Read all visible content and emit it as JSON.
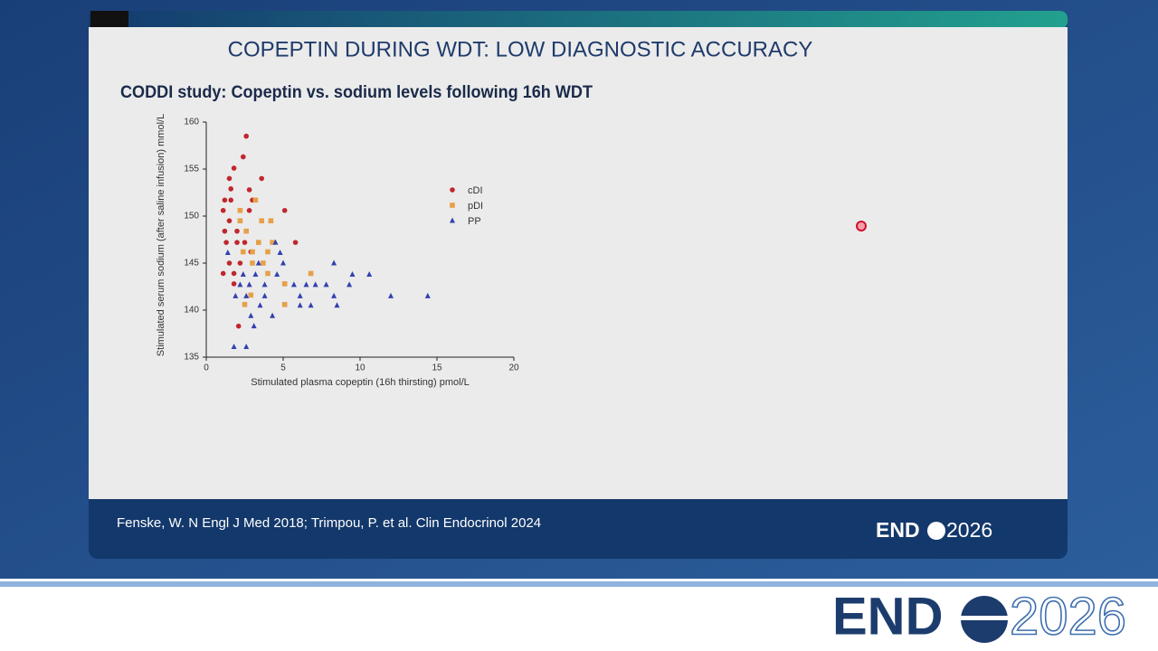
{
  "slide": {
    "title": "COPEPTIN DURING WDT: LOW DIAGNOSTIC ACCURACY",
    "citation": "Fenske, W. N Engl J Med 2018; Trimpou, P. et al. Clin Endocrinol 2024",
    "logo": {
      "left": "END",
      "right": "2026"
    }
  },
  "chart_data": {
    "type": "scatter",
    "title": "CODDI study: Copeptin vs. sodium levels following 16h WDT",
    "x_label": "Stimulated plasma copeptin (16h thirsting) pmol/L",
    "y_label": "Stimulated serum sodium (after saline infusion) mmol/L",
    "xlim": [
      0,
      20
    ],
    "ylim": [
      135,
      160
    ],
    "xticks": [
      0,
      5,
      10,
      15,
      20
    ],
    "yticks": [
      135,
      140,
      145,
      150,
      155,
      160
    ],
    "series": [
      {
        "name": "cDI",
        "color": "#c0272d",
        "marker": "circle",
        "x": [
          2.6,
          2.4,
          1.8,
          3.6,
          1.5,
          1.6,
          2.8,
          1.2,
          1.6,
          3.0,
          1.1,
          2.8,
          5.1,
          1.5,
          2.0,
          1.2,
          1.3,
          2.0,
          2.5,
          5.8,
          2.9,
          1.5,
          2.2,
          1.1,
          1.8,
          1.8,
          2.1
        ],
        "values": [
          158.5,
          156.3,
          155.1,
          154.0,
          154.0,
          152.9,
          152.8,
          151.7,
          151.7,
          151.7,
          150.6,
          150.6,
          150.6,
          149.5,
          148.4,
          148.4,
          147.2,
          147.2,
          147.2,
          147.2,
          146.2,
          145.0,
          145.0,
          143.9,
          143.9,
          142.8,
          138.3
        ]
      },
      {
        "name": "pDI",
        "color": "#e6a04a",
        "marker": "square",
        "x": [
          3.2,
          2.2,
          3.6,
          4.2,
          2.2,
          2.6,
          4.3,
          3.4,
          2.4,
          3.0,
          4.0,
          3.0,
          3.7,
          4.0,
          6.8,
          5.1,
          2.9,
          2.5,
          5.1
        ],
        "values": [
          151.7,
          150.6,
          149.5,
          149.5,
          149.5,
          148.4,
          147.2,
          147.2,
          146.2,
          146.2,
          146.2,
          145.0,
          145.0,
          143.9,
          143.9,
          142.8,
          141.6,
          140.6,
          140.6
        ]
      },
      {
        "name": "PP",
        "color": "#3340b0",
        "marker": "triangle",
        "x": [
          4.5,
          1.4,
          4.8,
          3.4,
          5.0,
          8.3,
          2.4,
          3.2,
          4.6,
          9.5,
          10.6,
          2.2,
          2.8,
          3.8,
          5.7,
          6.5,
          7.1,
          7.8,
          9.3,
          1.9,
          2.6,
          3.8,
          6.1,
          8.3,
          12.0,
          14.4,
          3.5,
          6.1,
          6.8,
          8.5,
          2.9,
          4.3,
          3.1,
          1.8,
          2.6
        ],
        "values": [
          147.2,
          146.1,
          146.1,
          145.0,
          145.0,
          145.0,
          143.8,
          143.8,
          143.8,
          143.8,
          143.8,
          142.7,
          142.7,
          142.7,
          142.7,
          142.7,
          142.7,
          142.7,
          142.7,
          141.5,
          141.5,
          141.5,
          141.5,
          141.5,
          141.5,
          141.5,
          140.5,
          140.5,
          140.5,
          140.5,
          139.4,
          139.4,
          138.3,
          136.1,
          136.1
        ]
      }
    ]
  }
}
